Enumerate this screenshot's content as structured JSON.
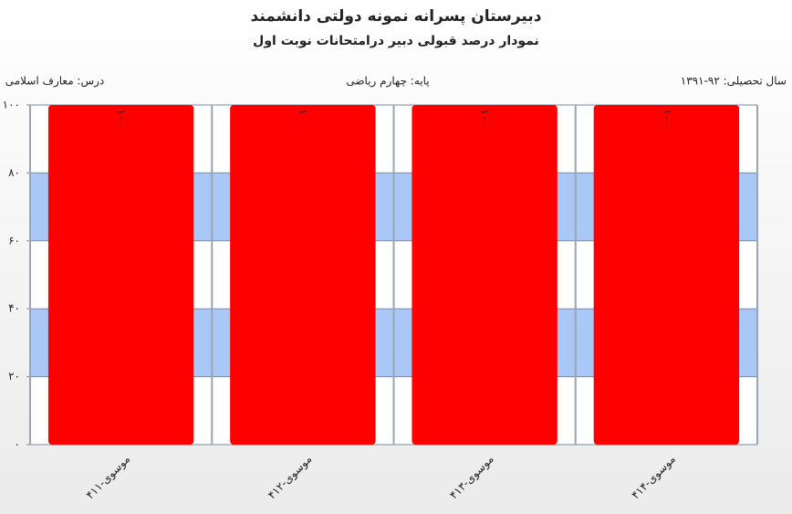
{
  "title": "دبیرستان پسرانه نمونه دولتی دانشمند",
  "subtitle": "نمودار درصد قبولی دبیر درامتحانات نوبت اول",
  "info": {
    "year": "سال تحصیلی: ۹۲-۱۳۹۱",
    "grade": "پایه: چهارم ریاضی",
    "course": "درس: معارف اسلامی"
  },
  "chart_data": {
    "type": "bar",
    "categories": [
      "موسوی-۴۱۱",
      "موسوی-۴۱۲",
      "موسوی-۴۱۳",
      "موسوی-۴۱۴"
    ],
    "values": [
      100,
      100,
      100,
      100
    ],
    "value_labels": [
      "۱۰۰",
      "۱۰۰",
      "۱۰۰",
      "۱۰۰"
    ],
    "color": "#ff0000",
    "band_color": "#a9c8f5",
    "ylim": [
      0,
      100
    ],
    "yticks": [
      {
        "value": 0,
        "label": "۰"
      },
      {
        "value": 20,
        "label": "۲۰"
      },
      {
        "value": 40,
        "label": "۴۰"
      },
      {
        "value": 60,
        "label": "۶۰"
      },
      {
        "value": 80,
        "label": "۸۰"
      },
      {
        "value": 100,
        "label": "۱۰۰"
      }
    ],
    "grid": true
  }
}
